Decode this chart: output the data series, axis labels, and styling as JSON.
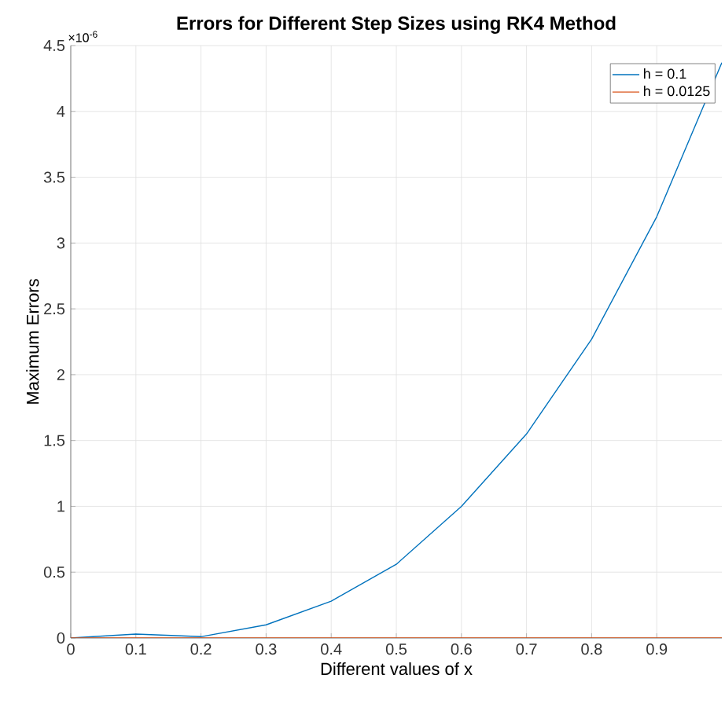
{
  "chart_data": {
    "type": "line",
    "title": "Errors for Different Step Sizes using RK4 Method",
    "xlabel": "Different values of x",
    "ylabel": "Maximum Errors",
    "annotations": [
      "×10$^{-6}$"
    ],
    "xlim": [
      0,
      1
    ],
    "ylim": [
      0,
      4.5
    ],
    "xticks": [
      0,
      0.1,
      0.2,
      0.3,
      0.4,
      0.5,
      0.6,
      0.7,
      0.8,
      0.9
    ],
    "yticks": [
      0,
      0.5,
      1,
      1.5,
      2,
      2.5,
      3,
      3.5,
      4,
      4.5
    ],
    "grid": true,
    "legend": "top right",
    "marker": "none",
    "line_style": "solid",
    "series": [
      {
        "name": "h = 0.1",
        "color": "#0072bd",
        "x": [
          0,
          0.1,
          0.2,
          0.3,
          0.4,
          0.5,
          0.6,
          0.7,
          0.8,
          0.9,
          1.0
        ],
        "values": [
          0,
          0.03,
          0.01,
          0.1,
          0.28,
          0.56,
          1.0,
          1.55,
          2.27,
          3.2,
          4.37
        ]
      },
      {
        "name": "h = 0.0125",
        "color": "#d95319",
        "x": [
          0,
          0.1,
          0.2,
          0.3,
          0.4,
          0.5,
          0.6,
          0.7,
          0.8,
          0.9,
          1.0
        ],
        "values": [
          0,
          0,
          0,
          0,
          0,
          0,
          0,
          0,
          0,
          0,
          0
        ]
      }
    ]
  }
}
